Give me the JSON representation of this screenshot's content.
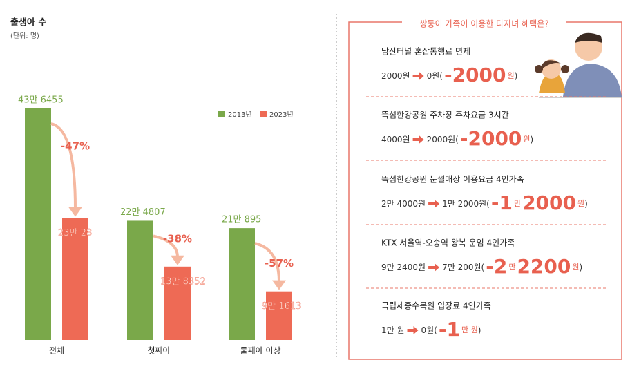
{
  "chart_data": {
    "type": "bar",
    "title": "출생아 수",
    "subtitle": "(단위: 명)",
    "categories": [
      "전체",
      "첫째아",
      "둘째아 이상"
    ],
    "series": [
      {
        "name": "2013년",
        "color": "#7aa84a",
        "values": [
          436455,
          224807,
          210895
        ],
        "value_labels": [
          "43만 6455",
          "22만 4807",
          "21만 895"
        ]
      },
      {
        "name": "2023년",
        "color": "#ee6a55",
        "values": [
          230028,
          138352,
          91613
        ],
        "value_labels": [
          "23만 28",
          "13만 8352",
          "9만 1613"
        ]
      }
    ],
    "annotations": [
      "-47%",
      "-38%",
      "-57%"
    ]
  },
  "benefits": {
    "title": "쌍둥이 가족이 이용한 다자녀 혜택은?",
    "items": [
      {
        "title": "남산터널 혼잡통행료 면제",
        "from": "2000원",
        "to": "0원(",
        "saving": [
          "-2000",
          "원"
        ],
        "close": ")"
      },
      {
        "title": "뚝섬한강공원 주차장 주차요금 3시간",
        "from": "4000원",
        "to": "2000원(",
        "saving": [
          "-2000",
          "원"
        ],
        "close": ")"
      },
      {
        "title": "뚝섬한강공원 눈썰매장 이용요금 4인가족",
        "from": "2만 4000원",
        "to": "1만 2000원(",
        "saving": [
          "-1",
          "만",
          "2000",
          "원"
        ],
        "close": ")"
      },
      {
        "title": "KTX 서울역-오송역 왕복 운임 4인가족",
        "from": "9만 2400원",
        "to": "7만 200원(",
        "saving": [
          "-2",
          "만",
          "2200",
          "원"
        ],
        "close": ")"
      },
      {
        "title": "국립세종수목원 입장료 4인가족",
        "from": "1만 원",
        "to": "0원(",
        "saving": [
          "-1",
          "만 원"
        ],
        "close": ")"
      }
    ]
  }
}
